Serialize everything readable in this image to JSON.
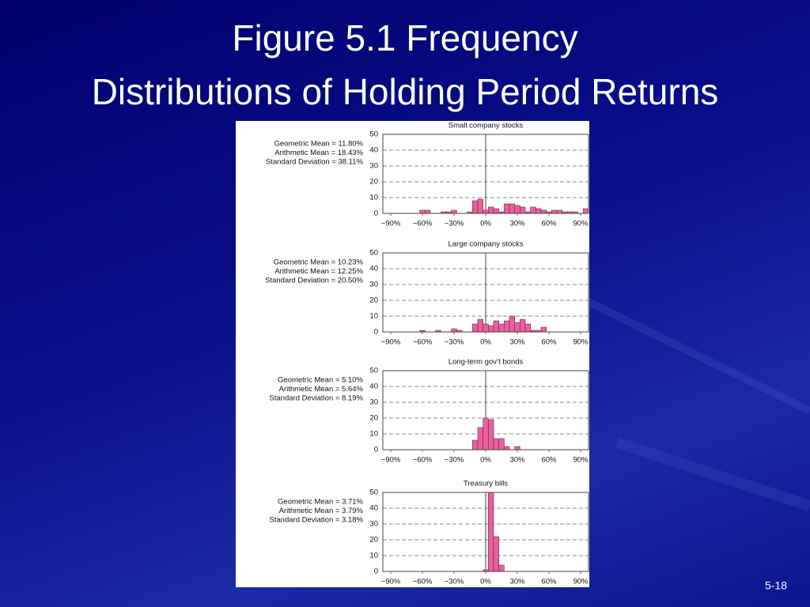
{
  "title": [
    "Figure 5.1 Frequency",
    "Distributions of Holding Period Returns"
  ],
  "page_number": "5-18",
  "chart_data": [
    {
      "type": "histogram",
      "title": "Small company stocks",
      "annotations": [
        "Geometric Mean = 11.80%",
        "Arithmetic Mean = 18.43%",
        "Standard Deviation = 38.11%"
      ],
      "bins": [
        -97.5,
        -92.5,
        -87.5,
        -82.5,
        -77.5,
        -72.5,
        -67.5,
        -62.5,
        -57.5,
        -52.5,
        -47.5,
        -42.5,
        -37.5,
        -32.5,
        -27.5,
        -22.5,
        -17.5,
        -12.5,
        -7.5,
        -2.5,
        2.5,
        7.5,
        12.5,
        17.5,
        22.5,
        27.5,
        32.5,
        37.5,
        42.5,
        47.5,
        52.5,
        57.5,
        62.5,
        67.5,
        72.5,
        77.5,
        82.5,
        87.5,
        92.5,
        97.5
      ],
      "values": [
        0,
        0,
        0,
        0,
        0,
        0,
        0,
        2,
        2,
        0,
        0,
        1,
        1,
        2,
        0,
        0,
        1,
        8,
        9,
        2,
        4,
        3,
        1,
        6,
        6,
        5,
        4,
        1,
        4,
        3,
        2,
        1,
        2,
        2,
        1,
        1,
        1,
        0,
        3
      ],
      "color": "#e8609c",
      "xlim": [
        -97.5,
        97.5
      ],
      "xticks": [
        {
          "value": -90,
          "label": "−90%"
        },
        {
          "value": -60,
          "label": "−60%"
        },
        {
          "value": -30,
          "label": "−30%"
        },
        {
          "value": 0,
          "label": "0%"
        },
        {
          "value": 30,
          "label": "30%"
        },
        {
          "value": 60,
          "label": "60%"
        },
        {
          "value": 90,
          "label": "90%"
        }
      ],
      "ylim": [
        0,
        50
      ],
      "yticks": [
        0,
        10,
        20,
        30,
        40,
        50
      ],
      "grid": true
    },
    {
      "type": "histogram",
      "title": "Large company stocks",
      "annotations": [
        "Geometric Mean = 10.23%",
        "Arithmetic Mean = 12.25%",
        "Standard Deviation = 20.50%"
      ],
      "bins": [
        -97.5,
        -92.5,
        -87.5,
        -82.5,
        -77.5,
        -72.5,
        -67.5,
        -62.5,
        -57.5,
        -52.5,
        -47.5,
        -42.5,
        -37.5,
        -32.5,
        -27.5,
        -22.5,
        -17.5,
        -12.5,
        -7.5,
        -2.5,
        2.5,
        7.5,
        12.5,
        17.5,
        22.5,
        27.5,
        32.5,
        37.5,
        42.5,
        47.5,
        52.5,
        57.5,
        62.5,
        67.5,
        72.5,
        77.5,
        82.5,
        87.5,
        92.5,
        97.5
      ],
      "values": [
        0,
        0,
        0,
        0,
        0,
        0,
        0,
        1,
        0,
        0,
        1,
        0,
        0,
        2,
        1,
        0,
        0,
        5,
        8,
        5,
        4,
        7,
        5,
        7,
        10,
        6,
        8,
        5,
        1,
        1,
        3,
        0,
        0,
        0,
        0,
        0,
        0,
        0,
        0
      ],
      "color": "#e8609c",
      "xlim": [
        -97.5,
        97.5
      ],
      "xticks": [
        {
          "value": -90,
          "label": "−90%"
        },
        {
          "value": -60,
          "label": "−60%"
        },
        {
          "value": -30,
          "label": "−30%"
        },
        {
          "value": 0,
          "label": "0%"
        },
        {
          "value": 30,
          "label": "30%"
        },
        {
          "value": 60,
          "label": "60%"
        },
        {
          "value": 90,
          "label": "90%"
        }
      ],
      "ylim": [
        0,
        50
      ],
      "yticks": [
        0,
        10,
        20,
        30,
        40,
        50
      ],
      "grid": true
    },
    {
      "type": "histogram",
      "title": "Long-term gov’t bonds",
      "annotations": [
        "Geometric Mean = 5.10%",
        "Arithmetic Mean = 5.64%",
        "Standard Deviation = 8.19%"
      ],
      "bins": [
        -97.5,
        -92.5,
        -87.5,
        -82.5,
        -77.5,
        -72.5,
        -67.5,
        -62.5,
        -57.5,
        -52.5,
        -47.5,
        -42.5,
        -37.5,
        -32.5,
        -27.5,
        -22.5,
        -17.5,
        -12.5,
        -7.5,
        -2.5,
        2.5,
        7.5,
        12.5,
        17.5,
        22.5,
        27.5,
        32.5,
        37.5,
        42.5,
        47.5,
        52.5,
        57.5,
        62.5,
        67.5,
        72.5,
        77.5,
        82.5,
        87.5,
        92.5,
        97.5
      ],
      "values": [
        0,
        0,
        0,
        0,
        0,
        0,
        0,
        0,
        0,
        0,
        0,
        0,
        0,
        0,
        0,
        0,
        0,
        6,
        14,
        20,
        19,
        7,
        7,
        2,
        0,
        2,
        0,
        0,
        0,
        0,
        0,
        0,
        0,
        0,
        0,
        0,
        0,
        0,
        0
      ],
      "color": "#e8609c",
      "xlim": [
        -97.5,
        97.5
      ],
      "xticks": [
        {
          "value": -90,
          "label": "−90%"
        },
        {
          "value": -60,
          "label": "−60%"
        },
        {
          "value": -30,
          "label": "−30%"
        },
        {
          "value": 0,
          "label": "0%"
        },
        {
          "value": 30,
          "label": "30%"
        },
        {
          "value": 60,
          "label": "60%"
        },
        {
          "value": 90,
          "label": "90%"
        }
      ],
      "ylim": [
        0,
        50
      ],
      "yticks": [
        0,
        10,
        20,
        30,
        40,
        50
      ],
      "grid": true
    },
    {
      "type": "histogram",
      "title": "Treasury bills",
      "annotations": [
        "Geometric Mean = 3.71%",
        "Arithmetic Mean = 3.79%",
        "Standard Deviation = 3.18%"
      ],
      "bins": [
        -97.5,
        -92.5,
        -87.5,
        -82.5,
        -77.5,
        -72.5,
        -67.5,
        -62.5,
        -57.5,
        -52.5,
        -47.5,
        -42.5,
        -37.5,
        -32.5,
        -27.5,
        -22.5,
        -17.5,
        -12.5,
        -7.5,
        -2.5,
        2.5,
        7.5,
        12.5,
        17.5,
        22.5,
        27.5,
        32.5,
        37.5,
        42.5,
        47.5,
        52.5,
        57.5,
        62.5,
        67.5,
        72.5,
        77.5,
        82.5,
        87.5,
        92.5,
        97.5
      ],
      "values": [
        0,
        0,
        0,
        0,
        0,
        0,
        0,
        0,
        0,
        0,
        0,
        0,
        0,
        0,
        0,
        0,
        0,
        0,
        0,
        1,
        50,
        22,
        4,
        0,
        0,
        0,
        0,
        0,
        0,
        0,
        0,
        0,
        0,
        0,
        0,
        0,
        0,
        0,
        0
      ],
      "color": "#e8609c",
      "xlim": [
        -97.5,
        97.5
      ],
      "xticks": [
        {
          "value": -90,
          "label": "−90%"
        },
        {
          "value": -60,
          "label": "−60%"
        },
        {
          "value": -30,
          "label": "−30%"
        },
        {
          "value": 0,
          "label": "0%"
        },
        {
          "value": 30,
          "label": "30%"
        },
        {
          "value": 60,
          "label": "60%"
        },
        {
          "value": 90,
          "label": "90%"
        }
      ],
      "ylim": [
        0,
        50
      ],
      "yticks": [
        0,
        10,
        20,
        30,
        40,
        50
      ],
      "grid": true
    }
  ]
}
